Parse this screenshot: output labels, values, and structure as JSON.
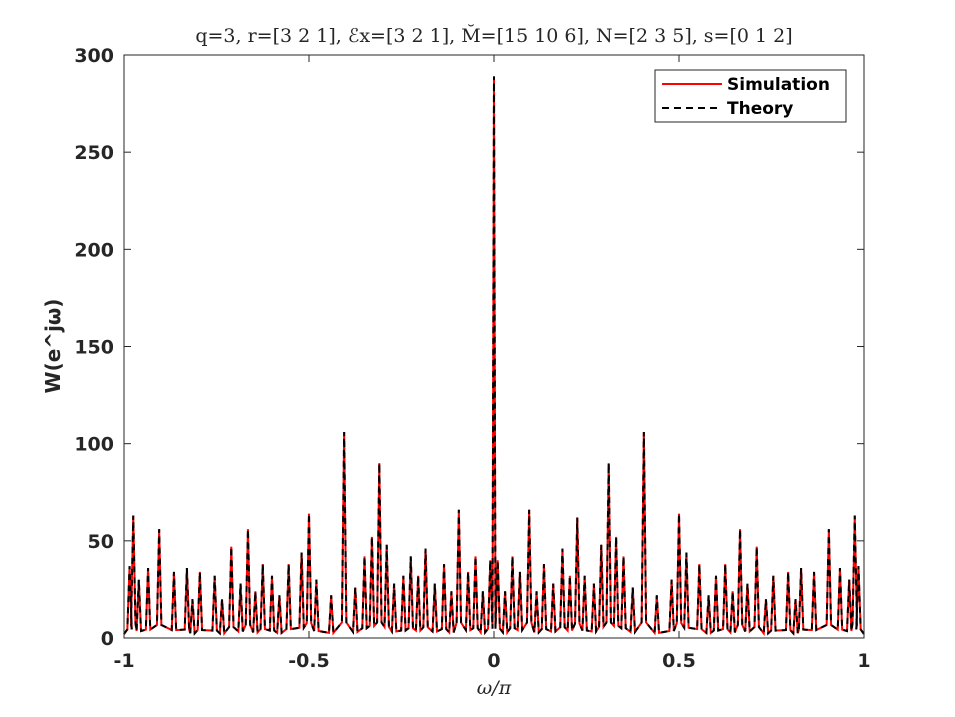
{
  "chart_data": {
    "type": "line",
    "title": "q=3, r=[3 2 1], ℰx=[3 2 1], M̆=[15 10 6], N=[2 3 5], s=[0 1 2]",
    "xlabel": "ω/π",
    "ylabel": "W(e^jω)",
    "xlim": [
      -1,
      1
    ],
    "ylim": [
      0,
      300
    ],
    "x_ticks": [
      -1,
      -0.5,
      0,
      0.5,
      1
    ],
    "x_tick_labels": [
      "-1",
      "-0.5",
      "0",
      "0.5",
      "1"
    ],
    "y_ticks": [
      0,
      50,
      100,
      150,
      200,
      250,
      300
    ],
    "y_tick_labels": [
      "0",
      "50",
      "100",
      "150",
      "200",
      "250",
      "300"
    ],
    "grid": false,
    "legend_position": "top-right",
    "series": [
      {
        "name": "Simulation",
        "color": "#ff0000",
        "style": "solid",
        "peaks": [
          {
            "x": -0.985,
            "y": 37
          },
          {
            "x": -0.975,
            "y": 63
          },
          {
            "x": -0.96,
            "y": 30
          },
          {
            "x": -0.935,
            "y": 36
          },
          {
            "x": -0.905,
            "y": 56
          },
          {
            "x": -0.865,
            "y": 34
          },
          {
            "x": -0.83,
            "y": 36
          },
          {
            "x": -0.815,
            "y": 20
          },
          {
            "x": -0.795,
            "y": 34
          },
          {
            "x": -0.755,
            "y": 32
          },
          {
            "x": -0.735,
            "y": 20
          },
          {
            "x": -0.71,
            "y": 47
          },
          {
            "x": -0.685,
            "y": 28
          },
          {
            "x": -0.665,
            "y": 56
          },
          {
            "x": -0.645,
            "y": 24
          },
          {
            "x": -0.625,
            "y": 38
          },
          {
            "x": -0.6,
            "y": 32
          },
          {
            "x": -0.58,
            "y": 22
          },
          {
            "x": -0.555,
            "y": 38
          },
          {
            "x": -0.52,
            "y": 44
          },
          {
            "x": -0.5,
            "y": 64
          },
          {
            "x": -0.48,
            "y": 30
          },
          {
            "x": -0.44,
            "y": 22
          },
          {
            "x": -0.405,
            "y": 106
          },
          {
            "x": -0.375,
            "y": 26
          },
          {
            "x": -0.35,
            "y": 42
          },
          {
            "x": -0.33,
            "y": 52
          },
          {
            "x": -0.31,
            "y": 90
          },
          {
            "x": -0.29,
            "y": 48
          },
          {
            "x": -0.27,
            "y": 28
          },
          {
            "x": -0.245,
            "y": 32
          },
          {
            "x": -0.225,
            "y": 42
          },
          {
            "x": -0.205,
            "y": 32
          },
          {
            "x": -0.185,
            "y": 46
          },
          {
            "x": -0.16,
            "y": 28
          },
          {
            "x": -0.135,
            "y": 38
          },
          {
            "x": -0.115,
            "y": 24
          },
          {
            "x": -0.095,
            "y": 66
          },
          {
            "x": -0.07,
            "y": 34
          },
          {
            "x": -0.05,
            "y": 42
          },
          {
            "x": -0.03,
            "y": 24
          },
          {
            "x": -0.01,
            "y": 40
          },
          {
            "x": 0.0,
            "y": 289
          },
          {
            "x": 0.01,
            "y": 40
          },
          {
            "x": 0.03,
            "y": 24
          },
          {
            "x": 0.05,
            "y": 42
          },
          {
            "x": 0.07,
            "y": 34
          },
          {
            "x": 0.095,
            "y": 66
          },
          {
            "x": 0.115,
            "y": 24
          },
          {
            "x": 0.135,
            "y": 38
          },
          {
            "x": 0.16,
            "y": 28
          },
          {
            "x": 0.185,
            "y": 46
          },
          {
            "x": 0.205,
            "y": 32
          },
          {
            "x": 0.225,
            "y": 62
          },
          {
            "x": 0.245,
            "y": 32
          },
          {
            "x": 0.27,
            "y": 28
          },
          {
            "x": 0.29,
            "y": 48
          },
          {
            "x": 0.31,
            "y": 90
          },
          {
            "x": 0.33,
            "y": 52
          },
          {
            "x": 0.35,
            "y": 42
          },
          {
            "x": 0.375,
            "y": 26
          },
          {
            "x": 0.405,
            "y": 106
          },
          {
            "x": 0.44,
            "y": 22
          },
          {
            "x": 0.48,
            "y": 30
          },
          {
            "x": 0.5,
            "y": 64
          },
          {
            "x": 0.52,
            "y": 44
          },
          {
            "x": 0.555,
            "y": 38
          },
          {
            "x": 0.58,
            "y": 22
          },
          {
            "x": 0.6,
            "y": 32
          },
          {
            "x": 0.625,
            "y": 38
          },
          {
            "x": 0.645,
            "y": 24
          },
          {
            "x": 0.665,
            "y": 56
          },
          {
            "x": 0.685,
            "y": 28
          },
          {
            "x": 0.71,
            "y": 47
          },
          {
            "x": 0.735,
            "y": 20
          },
          {
            "x": 0.755,
            "y": 32
          },
          {
            "x": 0.795,
            "y": 34
          },
          {
            "x": 0.815,
            "y": 20
          },
          {
            "x": 0.83,
            "y": 36
          },
          {
            "x": 0.865,
            "y": 34
          },
          {
            "x": 0.905,
            "y": 56
          },
          {
            "x": 0.935,
            "y": 36
          },
          {
            "x": 0.96,
            "y": 30
          },
          {
            "x": 0.975,
            "y": 63
          },
          {
            "x": 0.985,
            "y": 37
          }
        ]
      },
      {
        "name": "Theory",
        "color": "#000000",
        "style": "dashed",
        "same_as": "Simulation"
      }
    ]
  },
  "legend": {
    "items": [
      {
        "label": "Simulation",
        "color": "#ff0000",
        "style": "solid"
      },
      {
        "label": "Theory",
        "color": "#000000",
        "style": "dashed"
      }
    ]
  }
}
